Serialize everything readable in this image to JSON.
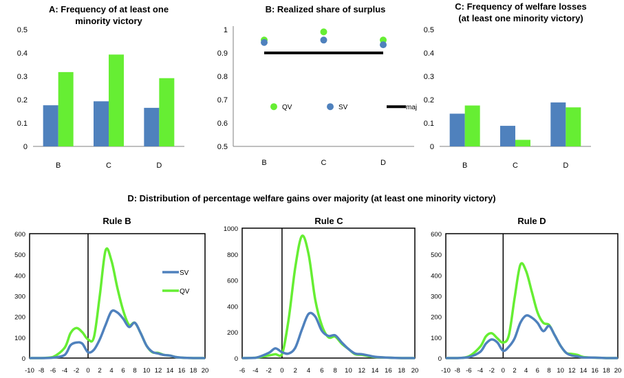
{
  "figure_title": "D: Distribution of percentage welfare gains over majority (at least one minority victory)",
  "colors": {
    "SV": "#4f81bd",
    "QV": "#66ee33",
    "maj": "#000000",
    "axis": "#000000",
    "frame": "#000000"
  },
  "chart_data": [
    {
      "id": "A",
      "type": "bar",
      "title_lines": [
        "A: Frequency of at least one",
        "minority victory"
      ],
      "categories": [
        "B",
        "C",
        "D"
      ],
      "series": [
        {
          "key": "SV",
          "values": [
            0.176,
            0.193,
            0.165
          ]
        },
        {
          "key": "QV",
          "values": [
            0.318,
            0.393,
            0.292
          ]
        }
      ],
      "ylim": [
        0,
        0.5
      ],
      "yticks": [
        0,
        0.1,
        0.2,
        0.3,
        0.4,
        0.5
      ],
      "ytick_labels": [
        "0",
        "0.1",
        "0.2",
        "0.3",
        "0.4",
        "0.5"
      ],
      "grid": false
    },
    {
      "id": "B",
      "type": "scatter",
      "title_lines": [
        "B: Realized share of surplus"
      ],
      "categories": [
        "B",
        "C",
        "D"
      ],
      "series": [
        {
          "key": "QV",
          "name": "QV",
          "values": [
            0.955,
            0.99,
            0.955
          ]
        },
        {
          "key": "SV",
          "name": "SV",
          "values": [
            0.945,
            0.955,
            0.935
          ]
        },
        {
          "key": "maj",
          "name": "maj",
          "values": [
            0.9,
            0.9,
            0.9
          ]
        }
      ],
      "ylim": [
        0.5,
        1
      ],
      "yticks": [
        0.5,
        0.6,
        0.7,
        0.8,
        0.9,
        1
      ],
      "ytick_labels": [
        "0.5",
        "0.6",
        "0.7",
        "0.8",
        "0.9",
        "1"
      ],
      "legend_position": "middle",
      "grid": false
    },
    {
      "id": "C",
      "type": "bar",
      "title_lines": [
        "C: Frequency of welfare losses",
        "(at least one minority victory)"
      ],
      "categories": [
        "B",
        "C",
        "D"
      ],
      "series": [
        {
          "key": "SV",
          "values": [
            0.14,
            0.088,
            0.188
          ]
        },
        {
          "key": "QV",
          "values": [
            0.175,
            0.028,
            0.167
          ]
        }
      ],
      "ylim": [
        0,
        0.5
      ],
      "yticks": [
        0,
        0.1,
        0.2,
        0.3,
        0.4,
        0.5
      ],
      "ytick_labels": [
        "0",
        "0.1",
        "0.2",
        "0.3",
        "0.4",
        "0.5"
      ],
      "grid": false
    },
    {
      "id": "D1",
      "type": "line",
      "title_lines": [
        "Rule B"
      ],
      "xlim": [
        -10,
        20
      ],
      "xticks": [
        -10,
        -8,
        -6,
        -4,
        -2,
        0,
        2,
        4,
        6,
        8,
        10,
        12,
        14,
        16,
        18,
        20
      ],
      "ylim": [
        0,
        600
      ],
      "yticks": [
        0,
        100,
        200,
        300,
        400,
        500,
        600
      ],
      "vline_x": 0,
      "legend_position": "right",
      "series": [
        {
          "key": "SV",
          "name": "SV",
          "points": [
            [
              -10,
              0
            ],
            [
              -8,
              0
            ],
            [
              -6,
              2
            ],
            [
              -4,
              15
            ],
            [
              -3,
              62
            ],
            [
              -2,
              75
            ],
            [
              -1,
              70
            ],
            [
              0,
              28
            ],
            [
              1,
              40
            ],
            [
              2,
              90
            ],
            [
              3,
              160
            ],
            [
              4,
              225
            ],
            [
              5,
              220
            ],
            [
              6,
              190
            ],
            [
              7,
              150
            ],
            [
              8,
              170
            ],
            [
              9,
              120
            ],
            [
              10,
              60
            ],
            [
              11,
              30
            ],
            [
              12,
              22
            ],
            [
              13,
              15
            ],
            [
              14,
              12
            ],
            [
              15,
              5
            ],
            [
              16,
              2
            ],
            [
              18,
              0
            ],
            [
              20,
              0
            ]
          ]
        },
        {
          "key": "QV",
          "name": "QV",
          "points": [
            [
              -10,
              0
            ],
            [
              -8,
              0
            ],
            [
              -6,
              5
            ],
            [
              -4,
              50
            ],
            [
              -3,
              120
            ],
            [
              -2,
              145
            ],
            [
              -1,
              125
            ],
            [
              0,
              90
            ],
            [
              1,
              100
            ],
            [
              2,
              300
            ],
            [
              3,
              520
            ],
            [
              4,
              470
            ],
            [
              5,
              340
            ],
            [
              6,
              230
            ],
            [
              7,
              160
            ],
            [
              8,
              170
            ],
            [
              9,
              120
            ],
            [
              10,
              60
            ],
            [
              11,
              28
            ],
            [
              12,
              25
            ],
            [
              13,
              15
            ],
            [
              14,
              12
            ],
            [
              15,
              5
            ],
            [
              16,
              2
            ],
            [
              18,
              0
            ],
            [
              20,
              0
            ]
          ]
        }
      ]
    },
    {
      "id": "D2",
      "type": "line",
      "title_lines": [
        "Rule C"
      ],
      "xlim": [
        -6,
        20
      ],
      "xticks": [
        -6,
        -4,
        -2,
        0,
        2,
        4,
        6,
        8,
        10,
        12,
        14,
        16,
        18,
        20
      ],
      "ylim": [
        0,
        1000
      ],
      "yticks": [
        0,
        200,
        400,
        600,
        800,
        1000
      ],
      "vline_x": 0,
      "series": [
        {
          "key": "SV",
          "name": "SV",
          "points": [
            [
              -6,
              0
            ],
            [
              -4,
              2
            ],
            [
              -2,
              40
            ],
            [
              -1,
              75
            ],
            [
              0,
              45
            ],
            [
              1,
              35
            ],
            [
              2,
              80
            ],
            [
              3,
              220
            ],
            [
              4,
              340
            ],
            [
              5,
              320
            ],
            [
              6,
              210
            ],
            [
              7,
              170
            ],
            [
              8,
              175
            ],
            [
              9,
              120
            ],
            [
              10,
              70
            ],
            [
              11,
              35
            ],
            [
              12,
              30
            ],
            [
              13,
              20
            ],
            [
              14,
              10
            ],
            [
              16,
              3
            ],
            [
              18,
              0
            ],
            [
              20,
              0
            ]
          ]
        },
        {
          "key": "QV",
          "name": "QV",
          "points": [
            [
              -6,
              0
            ],
            [
              -4,
              3
            ],
            [
              -2,
              20
            ],
            [
              -1,
              30
            ],
            [
              0,
              30
            ],
            [
              1,
              300
            ],
            [
              2,
              700
            ],
            [
              3,
              940
            ],
            [
              4,
              800
            ],
            [
              5,
              450
            ],
            [
              6,
              250
            ],
            [
              7,
              160
            ],
            [
              8,
              165
            ],
            [
              9,
              110
            ],
            [
              10,
              70
            ],
            [
              11,
              30
            ],
            [
              12,
              25
            ],
            [
              13,
              15
            ],
            [
              14,
              8
            ],
            [
              16,
              3
            ],
            [
              18,
              0
            ],
            [
              20,
              0
            ]
          ]
        }
      ]
    },
    {
      "id": "D3",
      "type": "line",
      "title_lines": [
        "Rule D"
      ],
      "xlim": [
        -10,
        20
      ],
      "xticks": [
        -10,
        -8,
        -6,
        -4,
        -2,
        0,
        2,
        4,
        6,
        8,
        10,
        12,
        14,
        16,
        18,
        20
      ],
      "ylim": [
        0,
        600
      ],
      "yticks": [
        0,
        100,
        200,
        300,
        400,
        500,
        600
      ],
      "vline_x": 0,
      "series": [
        {
          "key": "SV",
          "name": "SV",
          "points": [
            [
              -10,
              0
            ],
            [
              -8,
              0
            ],
            [
              -6,
              5
            ],
            [
              -4,
              30
            ],
            [
              -3,
              70
            ],
            [
              -2,
              90
            ],
            [
              -1,
              75
            ],
            [
              0,
              35
            ],
            [
              1,
              55
            ],
            [
              2,
              95
            ],
            [
              3,
              170
            ],
            [
              4,
              205
            ],
            [
              5,
              195
            ],
            [
              6,
              170
            ],
            [
              7,
              130
            ],
            [
              8,
              155
            ],
            [
              9,
              110
            ],
            [
              10,
              60
            ],
            [
              11,
              25
            ],
            [
              12,
              12
            ],
            [
              13,
              8
            ],
            [
              14,
              3
            ],
            [
              16,
              2
            ],
            [
              18,
              0
            ],
            [
              20,
              0
            ]
          ]
        },
        {
          "key": "QV",
          "name": "QV",
          "points": [
            [
              -10,
              0
            ],
            [
              -8,
              0
            ],
            [
              -6,
              8
            ],
            [
              -4,
              55
            ],
            [
              -3,
              105
            ],
            [
              -2,
              120
            ],
            [
              -1,
              95
            ],
            [
              0,
              75
            ],
            [
              1,
              110
            ],
            [
              2,
              290
            ],
            [
              3,
              450
            ],
            [
              4,
              420
            ],
            [
              5,
              320
            ],
            [
              6,
              220
            ],
            [
              7,
              170
            ],
            [
              8,
              160
            ],
            [
              9,
              110
            ],
            [
              10,
              60
            ],
            [
              11,
              25
            ],
            [
              12,
              20
            ],
            [
              13,
              15
            ],
            [
              14,
              5
            ],
            [
              16,
              2
            ],
            [
              18,
              0
            ],
            [
              20,
              0
            ]
          ]
        }
      ]
    }
  ]
}
